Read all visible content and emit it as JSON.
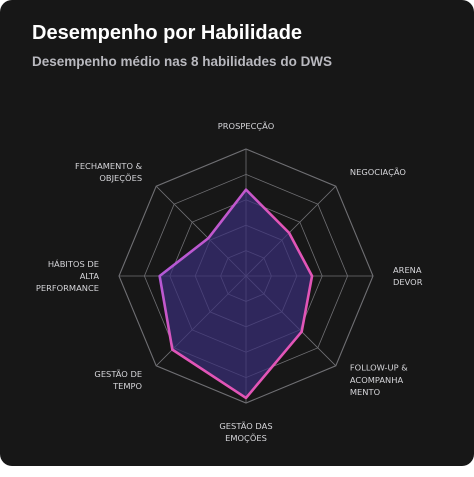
{
  "header": {
    "title": "Desempenho por Habilidade",
    "subtitle": "Desempenho médio nas 8 habilidades do DWS"
  },
  "chart_data": {
    "type": "radar",
    "title": "Desempenho por Habilidade",
    "subtitle": "Desempenho médio nas 8 habilidades do DWS",
    "axes": [
      {
        "label": "PROSPECÇÃO",
        "lines": [
          "PROSPECÇÃO"
        ]
      },
      {
        "label": "NEGOCIAÇÃO",
        "lines": [
          "NEGOCIAÇÃO"
        ]
      },
      {
        "label": "ARENA DEVOR",
        "lines": [
          "ARENA",
          "DEVOR"
        ]
      },
      {
        "label": "FOLLOW-UP & ACOMPANHAMENTO",
        "lines": [
          "FOLLOW-UP &",
          "ACOMPANHA",
          "MENTO"
        ]
      },
      {
        "label": "GESTÃO DAS EMOÇÕES",
        "lines": [
          "GESTÃO DAS",
          "EMOÇÕES"
        ]
      },
      {
        "label": "GESTÃO DE TEMPO",
        "lines": [
          "GESTÃO DE",
          "TEMPO"
        ]
      },
      {
        "label": "HÁBITOS DE ALTA PERFORMANCE",
        "lines": [
          "HÁBITOS DE",
          "ALTA",
          "PERFORMANCE"
        ]
      },
      {
        "label": "FECHAMENTO & OBJEÇÕES",
        "lines": [
          "FECHAMENTO &",
          "OBJEÇÕES"
        ]
      }
    ],
    "series": [
      {
        "values": [
          3.4,
          2.4,
          2.6,
          3.1,
          4.8,
          4.1,
          3.4,
          2.1
        ]
      }
    ],
    "rmax": 5,
    "grid_levels": 5,
    "colors": {
      "background": "#171717",
      "grid": "#6f6f73",
      "fill": "#3a2f7a",
      "stroke_start": "#e255b7",
      "stroke_end": "#8a5cf2"
    }
  }
}
